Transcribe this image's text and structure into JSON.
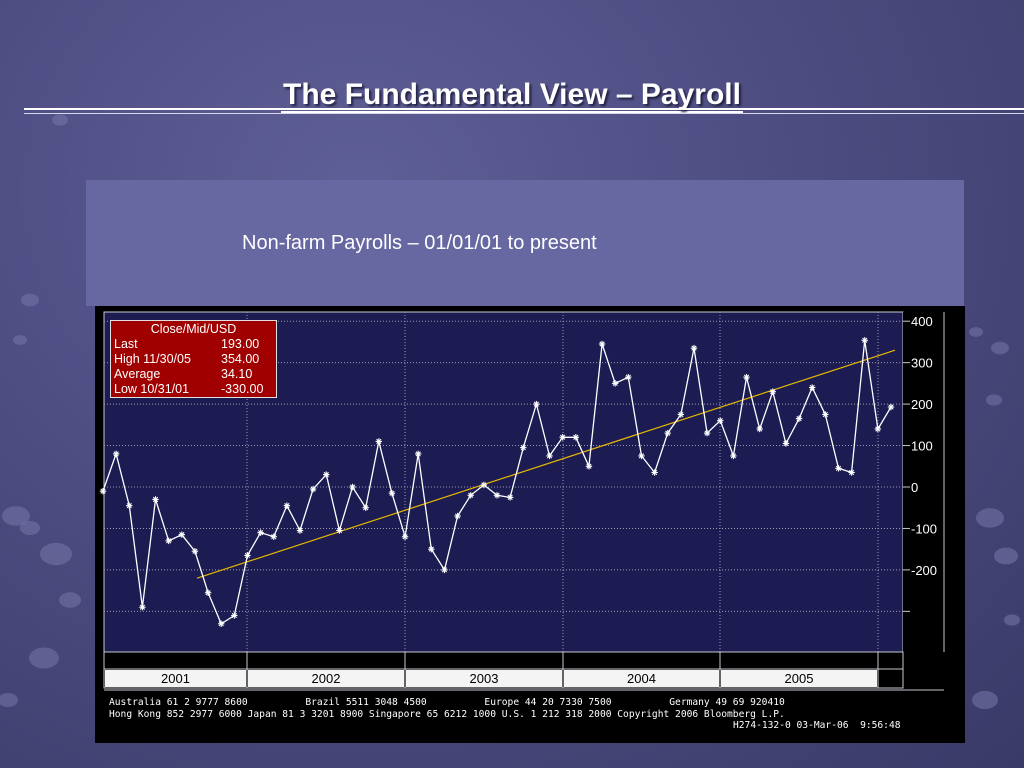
{
  "slide": {
    "title": "The Fundamental View – Payroll",
    "subtitle": "Non-farm Payrolls – 01/01/01 to present"
  },
  "legend": {
    "header": "Close/Mid/USD",
    "rows": [
      {
        "label": "Last",
        "value": "193.00"
      },
      {
        "label": "High  11/30/05",
        "value": "354.00"
      },
      {
        "label": "Average",
        "value": "34.10"
      },
      {
        "label": "Low  10/31/01",
        "value": "-330.00"
      }
    ]
  },
  "footer": {
    "line1": "Australia 61 2 9777 8600          Brazil 5511 3048 4500          Europe 44 20 7330 7500          Germany 49 69 920410",
    "line2": "Hong Kong 852 2977 6000 Japan 81 3 3201 8900 Singapore 65 6212 1000 U.S. 1 212 318 2000 Copyright 2006 Bloomberg L.P.",
    "line3": "H274-132-0 03-Mar-06  9:56:48"
  },
  "chart_data": {
    "type": "line",
    "ylim": [
      -300,
      400
    ],
    "yticks": [
      400,
      300,
      200,
      100,
      0,
      -100,
      -200
    ],
    "ytick_labels": [
      "400",
      "300",
      "200",
      "100",
      "0",
      "-100",
      "-200"
    ],
    "year_labels": [
      "2001",
      "2002",
      "2003",
      "2004",
      "2005"
    ],
    "x_start": "2001-01",
    "x_end": "2006-02",
    "grid": true,
    "series": [
      {
        "values": [
          -10,
          80,
          -45,
          -290,
          -30,
          -130,
          -115,
          -155,
          -255,
          -330,
          -310,
          -165,
          -110,
          -120,
          -45,
          -105,
          -5,
          30,
          -105,
          0,
          -50,
          110,
          -15,
          -120,
          80,
          -150,
          -200,
          -70,
          -20,
          5,
          -20,
          -25,
          95,
          200,
          75,
          120,
          120,
          50,
          345,
          250,
          265,
          75,
          35,
          130,
          175,
          335,
          130,
          160,
          75,
          265,
          140,
          230,
          105,
          165,
          240,
          175,
          45,
          35,
          354,
          140,
          193
        ],
        "color": "#ffffff",
        "marker": "asterisk"
      },
      {
        "type": "trendline",
        "values": [
          -220,
          330
        ],
        "color": "#e6b800"
      }
    ]
  }
}
